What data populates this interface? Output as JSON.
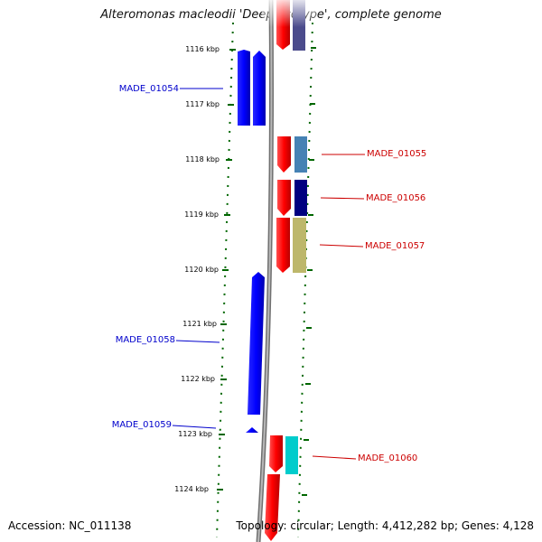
{
  "title": "Alteromonas macleodii 'Deep ecotype', complete genome",
  "accession": "Accession: NC_011138",
  "topology": "Topology: circular; Length: 4,412,282 bp; Genes: 4,128",
  "colors": {
    "reverse_gene": "#0000ff",
    "forward_gene": "#ff0000",
    "reverse_label": "#0000cc",
    "forward_label": "#cc0000",
    "tick": "#006600",
    "backbone": "#808080"
  },
  "ticks": [
    "1116 kbp",
    "1117 kbp",
    "1118 kbp",
    "1119 kbp",
    "1120 kbp",
    "1121 kbp",
    "1122 kbp",
    "1123 kbp",
    "1124 kbp"
  ],
  "reverse_labels": [
    "MADE_01054",
    "MADE_01058",
    "MADE_01059"
  ],
  "forward_labels": [
    "MADE_01055",
    "MADE_01056",
    "MADE_01057",
    "MADE_01060"
  ],
  "cog_colors": [
    "#4b4b8c",
    "#4682b4",
    "#000080",
    "#bdb76b",
    "#00cccc"
  ]
}
